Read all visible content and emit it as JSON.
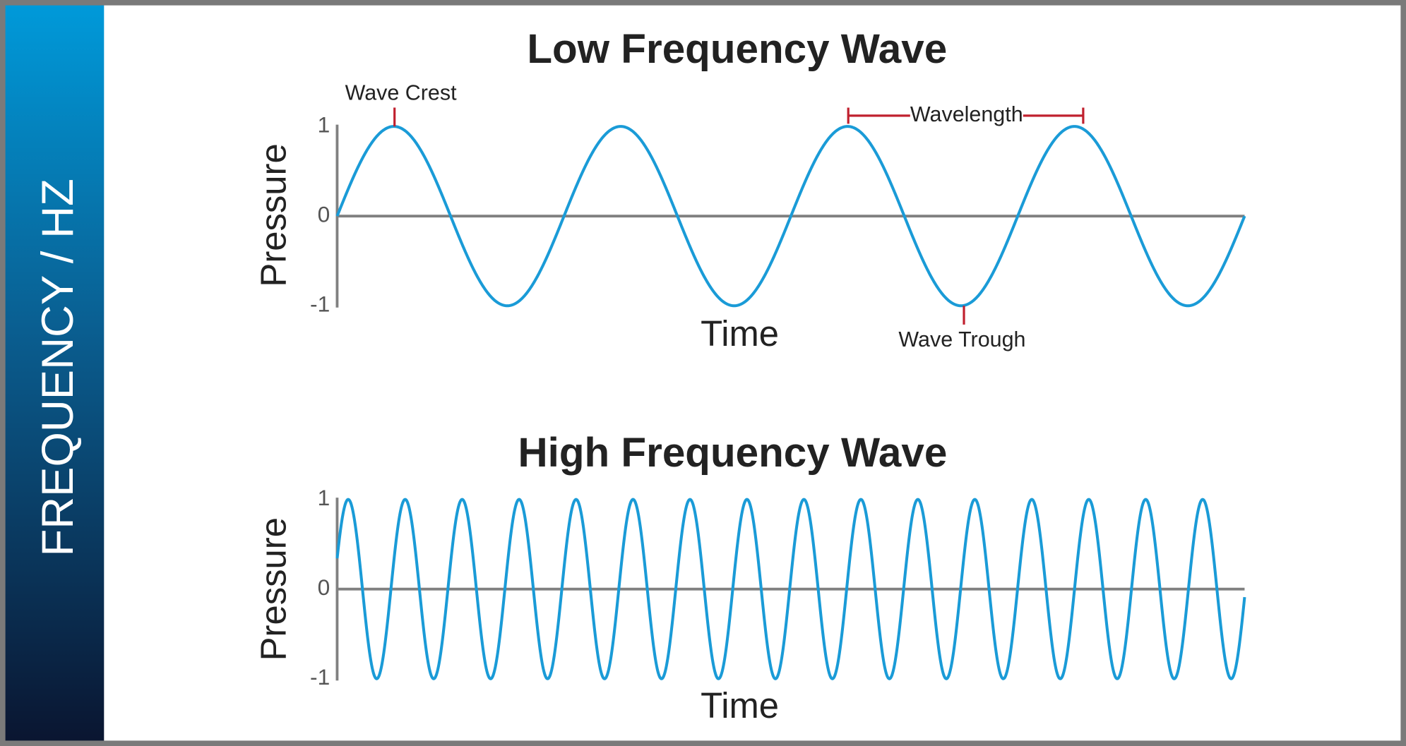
{
  "sidebar_title": "FREQUENCY / HZ",
  "panels": [
    {
      "title": "Low Frequency Wave",
      "y_label": "Pressure",
      "x_label": "Time",
      "y_ticks": [
        1,
        0,
        -1
      ],
      "annotations": [
        "Wave Crest",
        "Wavelength",
        "Wave Trough"
      ]
    },
    {
      "title": "High Frequency Wave",
      "y_label": "Pressure",
      "x_label": "Time",
      "y_ticks": [
        1,
        0,
        -1
      ]
    }
  ]
}
